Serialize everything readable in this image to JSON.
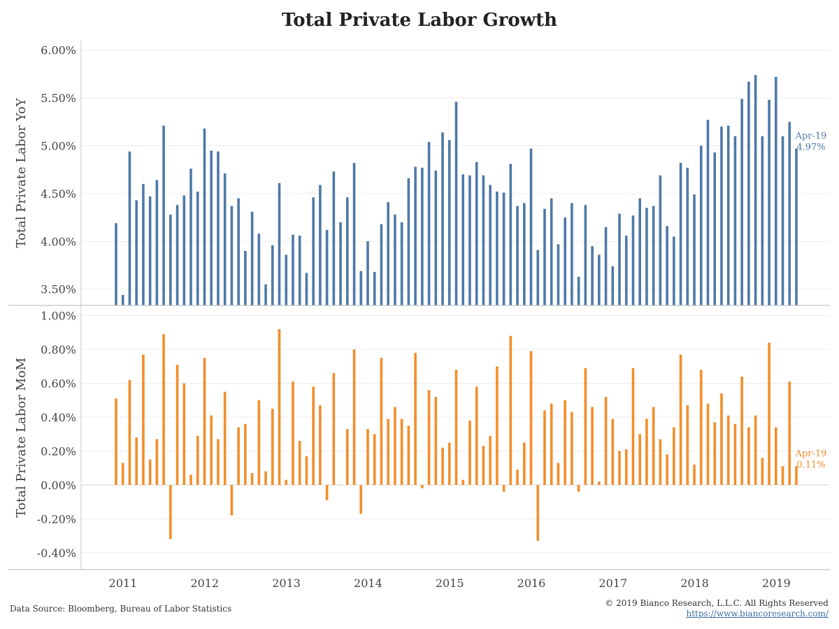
{
  "title": "Total Private Labor Growth",
  "footer": {
    "source": "Data Source: Bloomberg, Bureau of Labor Statistics",
    "copyright": "© 2019 Bianco Research, L.L.C. All Rights Reserved",
    "url": "https://www.biancoresearch.com/"
  },
  "colors": {
    "yoy": "#4e79a7",
    "mom": "#f28e2b",
    "grid": "#ececec",
    "zero_line": "#b0b0b0"
  },
  "chart_data": [
    {
      "type": "bar",
      "ylabel": "Total Private Labor YoY",
      "ylim": [
        3.33,
        6.1
      ],
      "yticks": [
        {
          "v": 6.0,
          "label": "6.00%"
        },
        {
          "v": 5.5,
          "label": "5.50%"
        },
        {
          "v": 5.0,
          "label": "5.00%"
        },
        {
          "v": 4.5,
          "label": "4.50%"
        },
        {
          "v": 4.0,
          "label": "4.00%"
        },
        {
          "v": 3.5,
          "label": "3.50%"
        }
      ],
      "x_start": "2011-01",
      "annotation": {
        "line1": "Apr-19",
        "line2": "4.97%"
      },
      "values": [
        4.19,
        3.44,
        4.94,
        4.43,
        4.6,
        4.47,
        4.64,
        5.21,
        4.28,
        4.38,
        4.48,
        4.76,
        4.52,
        5.18,
        4.95,
        4.94,
        4.71,
        4.37,
        4.45,
        3.9,
        4.31,
        4.08,
        3.55,
        3.96,
        4.61,
        3.86,
        4.07,
        4.06,
        3.67,
        4.46,
        4.59,
        4.12,
        4.73,
        4.2,
        4.46,
        4.82,
        3.69,
        4.0,
        3.68,
        4.18,
        4.41,
        4.28,
        4.2,
        4.66,
        4.78,
        4.77,
        5.04,
        4.74,
        5.14,
        5.06,
        5.46,
        4.7,
        4.69,
        4.83,
        4.69,
        4.59,
        4.52,
        4.51,
        4.81,
        4.37,
        4.4,
        4.97,
        3.91,
        4.34,
        4.45,
        3.97,
        4.25,
        4.4,
        3.63,
        4.38,
        3.95,
        3.86,
        4.15,
        3.74,
        4.29,
        4.06,
        4.27,
        4.45,
        4.35,
        4.37,
        4.69,
        4.16,
        4.05,
        4.82,
        4.77,
        4.49,
        5.0,
        5.27,
        4.93,
        5.2,
        5.21,
        5.1,
        5.49,
        5.67,
        5.74,
        5.1,
        5.48,
        5.72,
        5.1,
        5.25,
        4.97
      ]
    },
    {
      "type": "bar",
      "ylabel": "Total Private Labor MoM",
      "ylim": [
        -0.5,
        1.06
      ],
      "yticks": [
        {
          "v": 1.0,
          "label": "1.00%"
        },
        {
          "v": 0.8,
          "label": "0.80%"
        },
        {
          "v": 0.6,
          "label": "0.60%"
        },
        {
          "v": 0.4,
          "label": "0.40%"
        },
        {
          "v": 0.2,
          "label": "0.20%"
        },
        {
          "v": 0.0,
          "label": "0.00%"
        },
        {
          "v": -0.2,
          "label": "-0.20%"
        },
        {
          "v": -0.4,
          "label": "-0.40%"
        }
      ],
      "x_start": "2011-01",
      "annotation": {
        "line1": "Apr-19",
        "line2": "0.11%"
      },
      "values": [
        0.51,
        0.13,
        0.62,
        0.28,
        0.77,
        0.15,
        0.27,
        0.89,
        -0.32,
        0.71,
        0.6,
        0.06,
        0.29,
        0.75,
        0.41,
        0.27,
        0.55,
        -0.18,
        0.34,
        0.36,
        0.07,
        0.5,
        0.08,
        0.45,
        0.92,
        0.03,
        0.61,
        0.26,
        0.17,
        0.58,
        0.47,
        -0.09,
        0.66,
        0.0,
        0.33,
        0.8,
        -0.17,
        0.33,
        0.3,
        0.75,
        0.39,
        0.46,
        0.39,
        0.35,
        0.78,
        -0.02,
        0.56,
        0.52,
        0.22,
        0.25,
        0.68,
        0.03,
        0.38,
        0.58,
        0.23,
        0.29,
        0.7,
        -0.04,
        0.88,
        0.09,
        0.25,
        0.79,
        -0.33,
        0.44,
        0.48,
        0.13,
        0.5,
        0.43,
        -0.04,
        0.69,
        0.46,
        0.02,
        0.52,
        0.39,
        0.2,
        0.21,
        0.69,
        0.3,
        0.39,
        0.46,
        0.27,
        0.18,
        0.34,
        0.77,
        0.47,
        0.12,
        0.68,
        0.48,
        0.37,
        0.54,
        0.41,
        0.36,
        0.64,
        0.34,
        0.41,
        0.16,
        0.84,
        0.34,
        0.11,
        0.61,
        0.11
      ]
    }
  ],
  "x_axis": {
    "labels": [
      "2011",
      "2012",
      "2013",
      "2014",
      "2015",
      "2016",
      "2017",
      "2018",
      "2019"
    ]
  }
}
